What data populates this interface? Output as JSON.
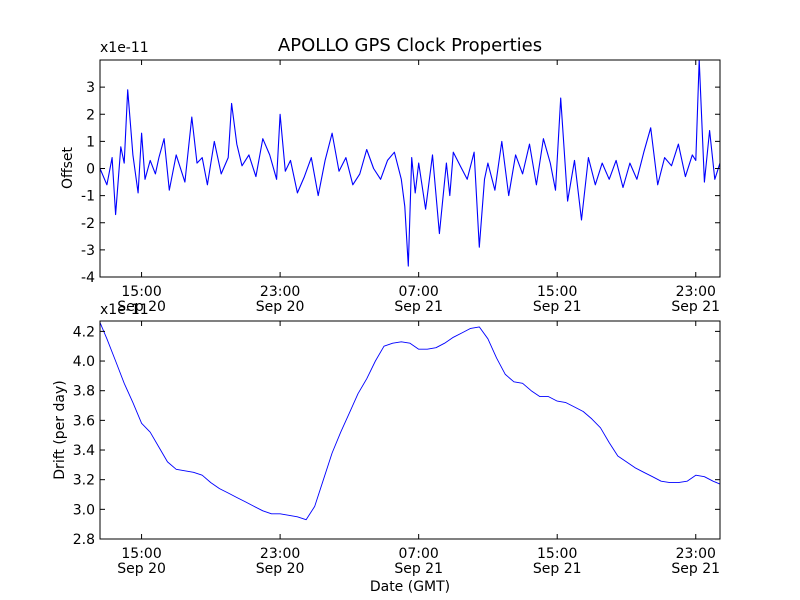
{
  "figure": {
    "title": "APOLLO GPS Clock Properties",
    "xlabel": "Date (GMT)"
  },
  "colors": {
    "line": "#0000ff",
    "axes": "#000000",
    "background": "#ffffff"
  },
  "chart_data": [
    {
      "type": "line",
      "title": "APOLLO GPS Clock Properties",
      "ylabel": "Offset",
      "xlabel": "",
      "scale_label": "x1e-11",
      "xlim": [
        12.6,
        48.4
      ],
      "ylim": [
        -4,
        4
      ],
      "x_unit": "hours after 00:00 Sep 20 (GMT)",
      "xticks": [
        {
          "x": 15,
          "label1": "15:00",
          "label2": "Sep 20"
        },
        {
          "x": 23,
          "label1": "23:00",
          "label2": "Sep 20"
        },
        {
          "x": 31,
          "label1": "07:00",
          "label2": "Sep 21"
        },
        {
          "x": 39,
          "label1": "15:00",
          "label2": "Sep 21"
        },
        {
          "x": 47,
          "label1": "23:00",
          "label2": "Sep 21"
        }
      ],
      "yticks": [
        -4,
        -3,
        -2,
        -1,
        0,
        1,
        2,
        3
      ],
      "yticklabels": [
        "-4",
        "-3",
        "-2",
        "-1",
        "0",
        "1",
        "2",
        "3"
      ],
      "grid": false,
      "legend": "none",
      "series": [
        {
          "x": [
            12.6,
            13.0,
            13.3,
            13.5,
            13.8,
            14.0,
            14.2,
            14.5,
            14.8,
            15.0,
            15.2,
            15.5,
            15.8,
            16.0,
            16.3,
            16.6,
            17.0,
            17.5,
            17.9,
            18.2,
            18.5,
            18.8,
            19.2,
            19.6,
            20.0,
            20.2,
            20.5,
            20.8,
            21.2,
            21.6,
            22.0,
            22.4,
            22.8,
            23.0,
            23.3,
            23.6,
            24.0,
            24.4,
            24.8,
            25.2,
            25.6,
            26.0,
            26.4,
            26.8,
            27.2,
            27.6,
            28.0,
            28.4,
            28.8,
            29.2,
            29.6,
            30.0,
            30.2,
            30.4,
            30.6,
            30.8,
            31.0,
            31.4,
            31.8,
            32.2,
            32.6,
            32.8,
            33.0,
            33.4,
            33.8,
            34.2,
            34.5,
            34.8,
            35.0,
            35.4,
            35.8,
            36.2,
            36.6,
            37.0,
            37.4,
            37.8,
            38.2,
            38.6,
            38.9,
            39.2,
            39.6,
            40.0,
            40.4,
            40.8,
            41.2,
            41.6,
            42.0,
            42.4,
            42.8,
            43.2,
            43.6,
            44.0,
            44.4,
            44.8,
            45.2,
            45.6,
            46.0,
            46.4,
            46.8,
            47.0,
            47.2,
            47.5,
            47.8,
            48.1,
            48.4
          ],
          "y": [
            0.0,
            -0.6,
            0.4,
            -1.7,
            0.8,
            0.2,
            2.9,
            0.5,
            -0.9,
            1.3,
            -0.4,
            0.3,
            -0.2,
            0.4,
            1.1,
            -0.8,
            0.5,
            -0.5,
            1.9,
            0.2,
            0.4,
            -0.6,
            1.0,
            -0.2,
            0.4,
            2.4,
            0.9,
            0.1,
            0.5,
            -0.3,
            1.1,
            0.5,
            -0.4,
            2.0,
            -0.1,
            0.3,
            -0.9,
            -0.3,
            0.4,
            -1.0,
            0.3,
            1.3,
            -0.1,
            0.4,
            -0.6,
            -0.2,
            0.7,
            0.0,
            -0.4,
            0.3,
            0.6,
            -0.4,
            -1.4,
            -3.6,
            0.4,
            -0.9,
            0.2,
            -1.5,
            0.5,
            -2.4,
            0.2,
            -1.0,
            0.6,
            0.1,
            -0.4,
            0.6,
            -2.9,
            -0.4,
            0.2,
            -0.8,
            1.0,
            -1.0,
            0.5,
            -0.2,
            0.9,
            -0.6,
            1.1,
            0.2,
            -0.8,
            2.6,
            -1.2,
            0.3,
            -1.9,
            0.4,
            -0.6,
            0.2,
            -0.4,
            0.3,
            -0.7,
            0.2,
            -0.4,
            0.6,
            1.5,
            -0.6,
            0.4,
            0.1,
            0.9,
            -0.3,
            0.5,
            0.3,
            4.0,
            -0.5,
            1.4,
            -0.4,
            0.2
          ]
        }
      ]
    },
    {
      "type": "line",
      "title": "",
      "ylabel": "Drift (per day)",
      "xlabel": "Date (GMT)",
      "scale_label": "x1e-11",
      "xlim": [
        12.6,
        48.4
      ],
      "ylim": [
        2.8,
        4.27
      ],
      "x_unit": "hours after 00:00 Sep 20 (GMT)",
      "xticks": [
        {
          "x": 15,
          "label1": "15:00",
          "label2": "Sep 20"
        },
        {
          "x": 23,
          "label1": "23:00",
          "label2": "Sep 20"
        },
        {
          "x": 31,
          "label1": "07:00",
          "label2": "Sep 21"
        },
        {
          "x": 39,
          "label1": "15:00",
          "label2": "Sep 21"
        },
        {
          "x": 47,
          "label1": "23:00",
          "label2": "Sep 21"
        }
      ],
      "yticks": [
        2.8,
        3.0,
        3.2,
        3.4,
        3.6,
        3.8,
        4.0,
        4.2
      ],
      "yticklabels": [
        "2.8",
        "3.0",
        "3.2",
        "3.4",
        "3.6",
        "3.8",
        "4.0",
        "4.2"
      ],
      "grid": false,
      "legend": "none",
      "series": [
        {
          "x": [
            12.6,
            13.0,
            13.5,
            14.0,
            14.5,
            15.0,
            15.5,
            16.0,
            16.5,
            17.0,
            17.5,
            18.0,
            18.5,
            19.0,
            19.5,
            20.0,
            20.5,
            21.0,
            21.5,
            22.0,
            22.5,
            23.0,
            23.5,
            24.0,
            24.5,
            25.0,
            25.5,
            26.0,
            26.5,
            27.0,
            27.5,
            28.0,
            28.5,
            29.0,
            29.5,
            30.0,
            30.5,
            31.0,
            31.5,
            32.0,
            32.5,
            33.0,
            33.5,
            34.0,
            34.5,
            35.0,
            35.5,
            36.0,
            36.5,
            37.0,
            37.5,
            38.0,
            38.5,
            39.0,
            39.5,
            40.0,
            40.5,
            41.0,
            41.5,
            42.0,
            42.5,
            43.0,
            43.5,
            44.0,
            44.5,
            45.0,
            45.5,
            46.0,
            46.5,
            47.0,
            47.5,
            48.0,
            48.4
          ],
          "y": [
            4.26,
            4.15,
            4.0,
            3.85,
            3.72,
            3.58,
            3.52,
            3.42,
            3.32,
            3.27,
            3.26,
            3.25,
            3.23,
            3.18,
            3.14,
            3.11,
            3.08,
            3.05,
            3.02,
            2.99,
            2.97,
            2.97,
            2.96,
            2.95,
            2.93,
            3.02,
            3.2,
            3.38,
            3.52,
            3.65,
            3.78,
            3.88,
            4.0,
            4.1,
            4.12,
            4.13,
            4.12,
            4.08,
            4.08,
            4.09,
            4.12,
            4.16,
            4.19,
            4.22,
            4.23,
            4.15,
            4.02,
            3.91,
            3.86,
            3.85,
            3.8,
            3.76,
            3.76,
            3.73,
            3.72,
            3.69,
            3.66,
            3.61,
            3.55,
            3.45,
            3.36,
            3.32,
            3.28,
            3.25,
            3.22,
            3.19,
            3.18,
            3.18,
            3.19,
            3.23,
            3.22,
            3.19,
            3.17
          ]
        }
      ]
    }
  ]
}
